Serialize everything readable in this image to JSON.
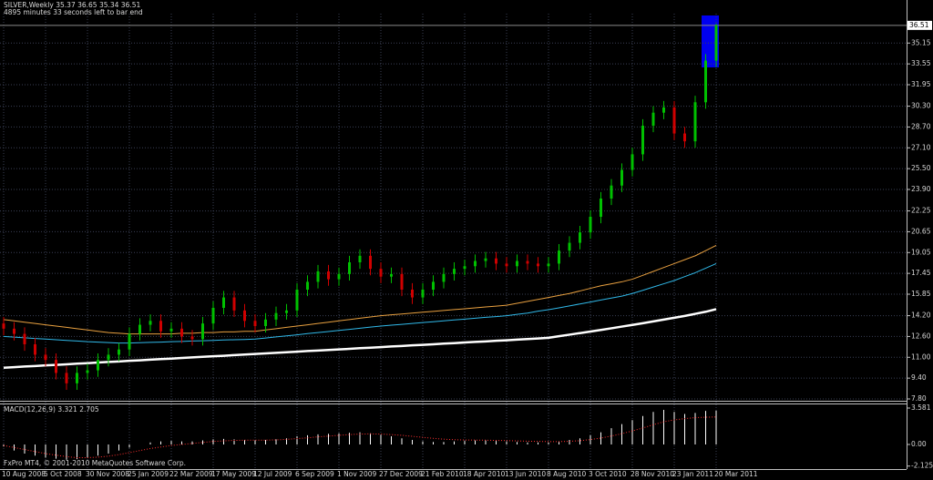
{
  "chart_data": [
    {
      "type": "candlestick",
      "title": "SILVER,Weekly  35.37 36.65 35.34 36.51",
      "subtitle": "4895 minutes 33 seconds left to bar end",
      "categories": [
        "10 Aug 2008",
        null,
        null,
        null,
        "5 Oct 2008",
        null,
        null,
        null,
        "30 Nov 2008",
        null,
        null,
        null,
        "25 Jan 2009",
        null,
        null,
        null,
        "22 Mar 2009",
        null,
        null,
        null,
        "17 May 2009",
        null,
        null,
        null,
        "12 Jul 2009",
        null,
        null,
        null,
        "6 Sep 2009",
        null,
        null,
        null,
        "1 Nov 2009",
        null,
        null,
        null,
        "27 Dec 2009",
        null,
        null,
        null,
        "21 Feb 2010",
        null,
        null,
        null,
        "18 Apr 2010",
        null,
        null,
        null,
        "13 Jun 2010",
        null,
        null,
        null,
        "8 Aug 2010",
        null,
        null,
        null,
        "3 Oct 2010",
        null,
        null,
        null,
        "28 Nov 2010",
        null,
        null,
        null,
        "23 Jan 2011",
        null,
        null,
        null,
        "20 Mar 2011"
      ],
      "open": [
        13.6,
        13.2,
        12.8,
        12.0,
        11.2,
        10.8,
        9.8,
        9.0,
        9.8,
        10.0,
        10.8,
        11.2,
        11.6,
        12.8,
        13.5,
        13.8,
        13.0,
        13.2,
        12.6,
        12.4,
        13.6,
        14.8,
        15.6,
        14.6,
        13.8,
        13.4,
        13.9,
        14.4,
        14.6,
        16.2,
        16.8,
        17.6,
        17.0,
        17.4,
        18.3,
        18.8,
        17.8,
        17.2,
        17.4,
        16.2,
        15.6,
        16.2,
        16.8,
        17.4,
        17.8,
        18.0,
        18.4,
        18.6,
        18.2,
        18.0,
        18.4,
        18.2,
        18.0,
        18.2,
        19.2,
        19.8,
        20.6,
        21.8,
        23.2,
        24.2,
        25.4,
        26.6,
        28.8,
        29.8,
        30.2,
        28.2,
        27.6,
        30.6,
        33.8
      ],
      "high": [
        14.1,
        13.7,
        13.3,
        12.5,
        11.7,
        11.3,
        10.3,
        10.3,
        10.5,
        11.3,
        11.7,
        12.1,
        13.3,
        14.0,
        14.3,
        14.3,
        13.7,
        13.7,
        13.1,
        14.1,
        15.3,
        16.1,
        16.1,
        15.1,
        14.3,
        14.4,
        14.9,
        15.1,
        16.7,
        17.3,
        18.1,
        18.1,
        17.9,
        18.8,
        19.3,
        19.3,
        18.3,
        17.9,
        17.9,
        16.7,
        16.7,
        17.3,
        17.9,
        18.3,
        18.5,
        18.9,
        19.1,
        19.1,
        18.7,
        18.9,
        18.9,
        18.7,
        18.7,
        19.7,
        20.3,
        21.1,
        22.3,
        23.7,
        24.7,
        25.9,
        27.1,
        29.3,
        30.3,
        30.7,
        30.7,
        28.7,
        31.1,
        34.3,
        36.65
      ],
      "low": [
        12.7,
        12.3,
        11.5,
        10.7,
        10.3,
        9.3,
        8.5,
        8.5,
        9.3,
        9.5,
        10.3,
        10.7,
        11.1,
        12.3,
        13.0,
        12.5,
        12.5,
        12.1,
        11.9,
        11.9,
        13.1,
        14.3,
        14.1,
        13.3,
        12.9,
        12.9,
        13.4,
        13.9,
        14.1,
        15.7,
        16.3,
        16.5,
        16.5,
        16.9,
        17.8,
        17.3,
        16.7,
        16.7,
        15.7,
        15.1,
        15.1,
        15.7,
        16.3,
        16.9,
        17.3,
        17.5,
        17.9,
        17.7,
        17.5,
        17.5,
        17.7,
        17.5,
        17.5,
        17.7,
        18.7,
        19.3,
        20.1,
        21.3,
        22.7,
        23.7,
        24.9,
        26.1,
        28.3,
        29.3,
        27.7,
        27.1,
        27.1,
        30.1,
        33.3
      ],
      "close": [
        13.2,
        12.8,
        12.0,
        11.2,
        10.8,
        9.8,
        9.0,
        9.8,
        10.0,
        10.8,
        11.2,
        11.6,
        12.8,
        13.5,
        13.8,
        13.0,
        13.2,
        12.6,
        12.4,
        13.6,
        14.8,
        15.6,
        14.6,
        13.8,
        13.4,
        13.9,
        14.4,
        14.6,
        16.2,
        16.8,
        17.6,
        17.0,
        17.4,
        18.3,
        18.8,
        17.8,
        17.2,
        17.4,
        16.2,
        15.6,
        16.2,
        16.8,
        17.4,
        17.8,
        18.0,
        18.4,
        18.6,
        18.2,
        18.0,
        18.4,
        18.2,
        18.0,
        18.2,
        19.2,
        19.8,
        20.6,
        21.8,
        23.2,
        24.2,
        25.4,
        26.6,
        28.8,
        29.8,
        30.2,
        28.2,
        27.6,
        30.6,
        33.8,
        36.51
      ],
      "up_color": "#00c000",
      "down_color": "#d00000",
      "series": [
        {
          "color": "#e8a040",
          "values": [
            13.9,
            13.8,
            13.7,
            13.6,
            13.5,
            13.4,
            13.3,
            13.2,
            13.1,
            13.0,
            12.9,
            12.85,
            12.8,
            12.8,
            12.8,
            12.8,
            12.8,
            12.85,
            12.85,
            12.9,
            12.9,
            12.95,
            12.95,
            13.0,
            13.0,
            13.1,
            13.2,
            13.3,
            13.4,
            13.5,
            13.6,
            13.7,
            13.8,
            13.9,
            14.0,
            14.1,
            14.2,
            14.27,
            14.33,
            14.4,
            14.47,
            14.53,
            14.6,
            14.67,
            14.73,
            14.8,
            14.87,
            14.93,
            15.0,
            15.15,
            15.3,
            15.45,
            15.6,
            15.75,
            15.9,
            16.1,
            16.3,
            16.5,
            16.65,
            16.8,
            17.0,
            17.3,
            17.6,
            17.9,
            18.2,
            18.5,
            18.8,
            19.2,
            19.6
          ],
          "width": 1
        },
        {
          "color": "#30b8e8",
          "values": [
            12.6,
            12.55,
            12.5,
            12.45,
            12.4,
            12.35,
            12.3,
            12.25,
            12.2,
            12.17,
            12.13,
            12.1,
            12.1,
            12.12,
            12.15,
            12.17,
            12.2,
            12.22,
            12.25,
            12.27,
            12.3,
            12.33,
            12.35,
            12.37,
            12.4,
            12.48,
            12.57,
            12.65,
            12.73,
            12.82,
            12.9,
            12.98,
            13.07,
            13.15,
            13.23,
            13.32,
            13.4,
            13.47,
            13.53,
            13.6,
            13.67,
            13.73,
            13.8,
            13.87,
            13.93,
            14.0,
            14.07,
            14.13,
            14.2,
            14.3,
            14.4,
            14.55,
            14.66,
            14.8,
            14.95,
            15.1,
            15.25,
            15.4,
            15.55,
            15.7,
            15.9,
            16.15,
            16.4,
            16.65,
            16.9,
            17.2,
            17.5,
            17.85,
            18.2
          ],
          "width": 1
        },
        {
          "color": "#ffffff",
          "values": [
            10.2,
            10.24,
            10.29,
            10.33,
            10.38,
            10.42,
            10.46,
            10.51,
            10.55,
            10.6,
            10.64,
            10.68,
            10.73,
            10.77,
            10.82,
            10.86,
            10.9,
            10.95,
            10.99,
            11.04,
            11.08,
            11.12,
            11.17,
            11.21,
            11.26,
            11.3,
            11.34,
            11.39,
            11.43,
            11.48,
            11.52,
            11.56,
            11.61,
            11.65,
            11.7,
            11.74,
            11.78,
            11.83,
            11.87,
            11.92,
            11.96,
            12.0,
            12.05,
            12.09,
            12.14,
            12.18,
            12.22,
            12.27,
            12.31,
            12.36,
            12.4,
            12.45,
            12.5,
            12.62,
            12.74,
            12.86,
            12.98,
            13.1,
            13.23,
            13.36,
            13.49,
            13.62,
            13.76,
            13.9,
            14.04,
            14.18,
            14.34,
            14.5,
            14.7
          ],
          "width": 2.5
        }
      ],
      "current_price": 36.51,
      "ylim": [
        7.66,
        37.41
      ],
      "yticks": [
        35.15,
        33.55,
        31.95,
        {
          "value": 30.3,
          "label": "30.30"
        },
        {
          "value": 28.7,
          "label": "28.70"
        },
        {
          "value": 27.1,
          "label": "27.10"
        },
        {
          "value": 25.5,
          "label": "25.50"
        },
        {
          "value": 23.9,
          "label": "23.90"
        },
        22.25,
        20.65,
        19.05,
        17.45,
        15.85,
        {
          "value": 14.2,
          "label": "14.20"
        },
        {
          "value": 12.6,
          "label": "12.60"
        },
        {
          "value": 11,
          "label": "11.00"
        },
        {
          "value": 9.4,
          "label": "9.40"
        },
        {
          "value": 7.8,
          "label": "7.80"
        }
      ],
      "grid": true
    },
    {
      "type": "macd",
      "title": "MACD(12,26,9) 3.321 2.705",
      "histogram": {
        "color": "#ffffff",
        "values": [
          -0.2,
          -0.6,
          -0.9,
          -1.1,
          -1.3,
          -1.4,
          -1.5,
          -1.45,
          -1.3,
          -1.1,
          -0.9,
          -0.6,
          -0.3,
          0.0,
          0.2,
          0.3,
          0.35,
          0.3,
          0.3,
          0.4,
          0.5,
          0.55,
          0.5,
          0.45,
          0.4,
          0.45,
          0.5,
          0.6,
          0.8,
          0.9,
          1.0,
          1.05,
          1.1,
          1.15,
          1.2,
          1.1,
          0.95,
          0.8,
          0.6,
          0.45,
          0.3,
          0.25,
          0.25,
          0.3,
          0.35,
          0.4,
          0.4,
          0.35,
          0.3,
          0.25,
          0.2,
          0.2,
          0.2,
          0.3,
          0.45,
          0.6,
          0.9,
          1.2,
          1.6,
          2.0,
          2.4,
          2.8,
          3.2,
          3.4,
          3.2,
          3.0,
          3.1,
          3.3,
          3.321
        ]
      },
      "signal": {
        "color": "#ff3030",
        "values": [
          -0.1,
          -0.3,
          -0.5,
          -0.7,
          -0.9,
          -1.05,
          -1.2,
          -1.3,
          -1.3,
          -1.25,
          -1.15,
          -1.0,
          -0.8,
          -0.6,
          -0.4,
          -0.25,
          -0.1,
          0.0,
          0.1,
          0.2,
          0.3,
          0.35,
          0.4,
          0.42,
          0.42,
          0.43,
          0.45,
          0.5,
          0.58,
          0.65,
          0.75,
          0.82,
          0.9,
          0.97,
          1.02,
          1.04,
          1.02,
          0.97,
          0.9,
          0.8,
          0.7,
          0.6,
          0.52,
          0.47,
          0.44,
          0.43,
          0.42,
          0.4,
          0.38,
          0.35,
          0.32,
          0.3,
          0.28,
          0.28,
          0.31,
          0.37,
          0.48,
          0.63,
          0.83,
          1.06,
          1.33,
          1.62,
          1.94,
          2.23,
          2.42,
          2.54,
          2.64,
          2.68,
          2.705
        ]
      },
      "ylim": [
        -2.42,
        3.94
      ],
      "yticks": [
        3.581,
        {
          "value": 0,
          "label": "0.00"
        },
        -2.125
      ]
    }
  ],
  "footer": "FxPro MT4, © 2001-2010 MetaQuotes Software Corp."
}
